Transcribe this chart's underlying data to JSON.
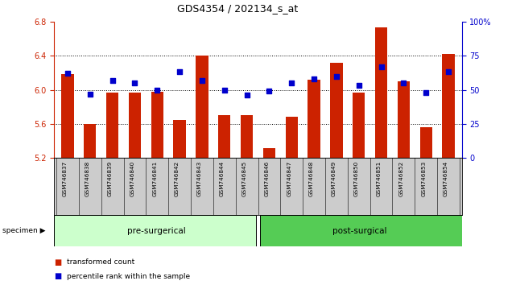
{
  "title": "GDS4354 / 202134_s_at",
  "samples": [
    "GSM746837",
    "GSM746838",
    "GSM746839",
    "GSM746840",
    "GSM746841",
    "GSM746842",
    "GSM746843",
    "GSM746844",
    "GSM746845",
    "GSM746846",
    "GSM746847",
    "GSM746848",
    "GSM746849",
    "GSM746850",
    "GSM746851",
    "GSM746852",
    "GSM746853",
    "GSM746854"
  ],
  "bar_values": [
    6.18,
    5.6,
    5.97,
    5.97,
    5.98,
    5.65,
    6.4,
    5.7,
    5.7,
    5.32,
    5.68,
    6.12,
    6.32,
    5.97,
    6.73,
    6.1,
    5.56,
    6.42
  ],
  "percentile_values": [
    62,
    47,
    57,
    55,
    50,
    63,
    57,
    50,
    46,
    49,
    55,
    58,
    60,
    53,
    67,
    55,
    48,
    63
  ],
  "pre_label": "pre-surgerical",
  "post_label": "post-surgical",
  "pre_n": 9,
  "post_n": 9,
  "pre_color": "#ccffcc",
  "post_color": "#55cc55",
  "ylim_left": [
    5.2,
    6.8
  ],
  "ylim_right": [
    0,
    100
  ],
  "bar_color": "#cc2200",
  "dot_color": "#0000cc",
  "axis_left_color": "#cc2200",
  "axis_right_color": "#0000cc",
  "specimen_label": "specimen",
  "legend_bar": "transformed count",
  "legend_dot": "percentile rank within the sample",
  "label_bg": "#cccccc",
  "yticks_left": [
    5.2,
    5.6,
    6.0,
    6.4,
    6.8
  ],
  "yticks_right": [
    0,
    25,
    50,
    75,
    100
  ],
  "grid_vals": [
    5.6,
    6.0,
    6.4
  ]
}
